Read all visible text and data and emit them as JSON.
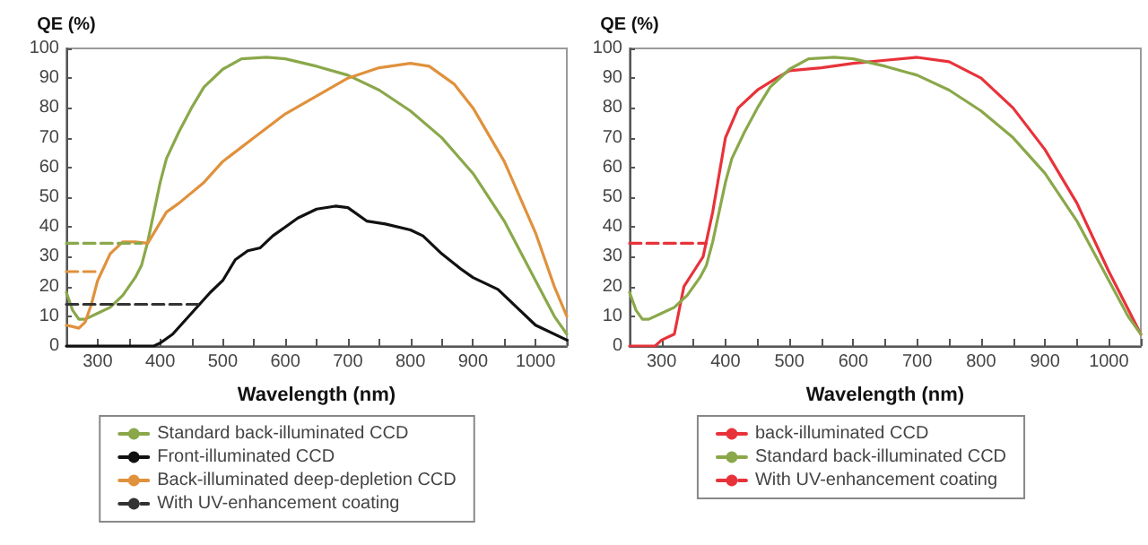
{
  "chart_data": [
    {
      "type": "line",
      "ylabel": "QE (%)",
      "xlabel": "Wavelength (nm)",
      "xlim": [
        250,
        1050
      ],
      "ylim": [
        0,
        100
      ],
      "xticks": [
        {
          "value": 250,
          "label": null
        },
        300,
        {
          "value": 350,
          "label": null
        },
        400,
        {
          "value": 450,
          "label": null
        },
        500,
        {
          "value": 550,
          "label": null
        },
        600,
        {
          "value": 650,
          "label": null
        },
        700,
        {
          "value": 750,
          "label": null
        },
        800,
        {
          "value": 850,
          "label": null
        },
        900,
        {
          "value": 950,
          "label": null
        },
        1000,
        {
          "value": 1050,
          "label": null
        }
      ],
      "yticks": [
        0,
        10,
        20,
        30,
        40,
        50,
        60,
        70,
        80,
        90,
        100
      ],
      "grid": false,
      "legend": "bottom",
      "marker": "none",
      "line_style": "solid",
      "series": [
        {
          "name": "Standard back-illuminated CCD",
          "color": "#8aa84a",
          "x": [
            250,
            260,
            270,
            280,
            300,
            320,
            340,
            360,
            370,
            380,
            390,
            400,
            410,
            430,
            450,
            470,
            500,
            530,
            570,
            600,
            650,
            700,
            750,
            800,
            850,
            900,
            950,
            1000,
            1030,
            1050
          ],
          "values": [
            18,
            12,
            9,
            9,
            11,
            13,
            17,
            23,
            27,
            35,
            45,
            55,
            63,
            72,
            80,
            87,
            93,
            96.5,
            97,
            96.5,
            94,
            91,
            86,
            79,
            70,
            58,
            42,
            22,
            10,
            4
          ]
        },
        {
          "name": "Front-illuminated CCD",
          "color": "#111111",
          "x": [
            250,
            390,
            400,
            420,
            450,
            480,
            500,
            520,
            540,
            560,
            580,
            600,
            620,
            650,
            680,
            700,
            730,
            760,
            800,
            820,
            850,
            880,
            900,
            940,
            970,
            1000,
            1050
          ],
          "values": [
            0,
            0,
            1,
            4,
            11,
            18,
            22,
            29,
            32,
            33,
            37,
            40,
            43,
            46,
            47,
            46.5,
            42,
            41,
            39,
            37,
            31,
            26,
            23,
            19,
            13,
            7,
            2
          ]
        },
        {
          "name": "Back-illuminated deep-depletion CCD",
          "color": "#e0913c",
          "x": [
            250,
            260,
            270,
            280,
            290,
            300,
            320,
            340,
            360,
            380,
            390,
            410,
            430,
            470,
            500,
            550,
            600,
            650,
            700,
            750,
            800,
            830,
            870,
            900,
            950,
            1000,
            1030,
            1050
          ],
          "values": [
            7,
            6.5,
            6,
            8,
            14,
            22,
            31,
            35,
            35,
            34.5,
            38,
            45,
            48,
            55,
            62,
            70,
            78,
            84,
            90,
            93.5,
            95,
            94,
            88,
            80,
            62,
            38,
            20,
            10
          ]
        },
        {
          "name": "With UV-enhancement coating",
          "color": "#333333",
          "line_style": "dashed",
          "x": [
            250,
            460
          ],
          "values": [
            14,
            14
          ]
        },
        {
          "color": "#e0913c",
          "line_style": "dashed",
          "x": [
            250,
            300
          ],
          "values": [
            25,
            25
          ]
        },
        {
          "color": "#8aa84a",
          "line_style": "dashed",
          "x": [
            250,
            370
          ],
          "values": [
            34.5,
            34.5
          ]
        }
      ]
    },
    {
      "type": "line",
      "ylabel": "QE (%)",
      "xlabel": "Wavelength (nm)",
      "xlim": [
        250,
        1050
      ],
      "ylim": [
        0,
        100
      ],
      "xticks": [
        {
          "value": 250,
          "label": null
        },
        300,
        {
          "value": 350,
          "label": null
        },
        400,
        {
          "value": 450,
          "label": null
        },
        500,
        {
          "value": 550,
          "label": null
        },
        600,
        {
          "value": 650,
          "label": null
        },
        700,
        {
          "value": 750,
          "label": null
        },
        800,
        {
          "value": 850,
          "label": null
        },
        900,
        {
          "value": 950,
          "label": null
        },
        1000,
        {
          "value": 1050,
          "label": null
        }
      ],
      "yticks": [
        0,
        10,
        20,
        30,
        40,
        50,
        60,
        70,
        80,
        90,
        100
      ],
      "grid": false,
      "legend": "bottom",
      "marker": "none",
      "line_style": "solid",
      "series": [
        {
          "name": "back-illuminated CCD",
          "color": "#e8323a",
          "x": [
            250,
            290,
            300,
            320,
            335,
            350,
            365,
            380,
            400,
            420,
            450,
            480,
            500,
            550,
            600,
            650,
            700,
            750,
            800,
            850,
            900,
            950,
            1000,
            1050
          ],
          "values": [
            0,
            0,
            2,
            4,
            20,
            25,
            30,
            45,
            70,
            80,
            86,
            90,
            92.5,
            93.5,
            95,
            96,
            97,
            95.5,
            90,
            80,
            66,
            48,
            25,
            4
          ]
        },
        {
          "name": "Standard back-illuminated CCD",
          "color": "#8aa84a",
          "x": [
            250,
            260,
            270,
            280,
            300,
            320,
            340,
            360,
            370,
            380,
            390,
            400,
            410,
            430,
            450,
            470,
            500,
            530,
            570,
            600,
            650,
            700,
            750,
            800,
            850,
            900,
            950,
            1000,
            1030,
            1050
          ],
          "values": [
            18,
            12,
            9,
            9,
            11,
            13,
            17,
            23,
            27,
            35,
            45,
            55,
            63,
            72,
            80,
            87,
            93,
            96.5,
            97,
            96.5,
            94,
            91,
            86,
            79,
            70,
            58,
            42,
            22,
            10,
            4
          ]
        },
        {
          "name": "With UV-enhancement coating",
          "color": "#e8323a",
          "line_style": "dashed",
          "x": [
            250,
            370
          ],
          "values": [
            34.5,
            34.5
          ]
        }
      ]
    }
  ]
}
